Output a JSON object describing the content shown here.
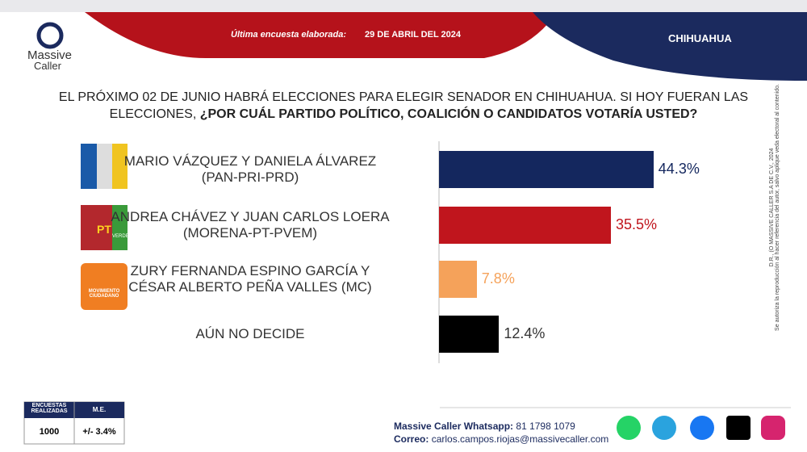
{
  "header": {
    "brand_top": "Massive",
    "brand_bottom": "Caller",
    "last_survey_label": "Última encuesta elaborada:",
    "last_survey_date": "29 DE ABRIL DEL 2024",
    "region": "CHIHUAHUA"
  },
  "chart_data": {
    "type": "bar",
    "orientation": "horizontal",
    "question": "EL PRÓXIMO 02 DE JUNIO HABRÁ ELECCIONES PARA ELEGIR SENADOR EN CHIHUAHUA. SI HOY FUERAN LAS ELECCIONES,",
    "question_bold": "¿POR CUÁL PARTIDO POLÍTICO, COALICIÓN O CANDIDATOS VOTARÍA USTED?",
    "categories": [
      "MARIO VÁZQUEZ Y DANIELA ÁLVAREZ\n(PAN-PRI-PRD)",
      "ANDREA CHÁVEZ Y JUAN CARLOS LOERA\n(MORENA-PT-PVEM)",
      "ZURY FERNANDA ESPINO GARCÍA Y\nCÉSAR ALBERTO PEÑA VALLES (MC)",
      "AÚN NO DECIDE"
    ],
    "values": [
      44.3,
      35.5,
      7.8,
      12.4
    ],
    "value_labels": [
      "44.3%",
      "35.5%",
      "7.8%",
      "12.4%"
    ],
    "colors": [
      "#14275e",
      "#c0151d",
      "#f5a25a",
      "#000000"
    ]
  },
  "logos": {
    "pt": "PT",
    "verde": "VERDE",
    "mc": "MOVIMIENTO CIUDADANO"
  },
  "footer": {
    "surveys_header": "ENCUESTAS REALIZADAS",
    "me_header": "M.E.",
    "surveys": "1000",
    "me": "+/- 3.4%",
    "whatsapp_label": "Massive Caller Whatsapp:",
    "whatsapp": "81 1798 1079",
    "email_label": "Correo:",
    "email": "carlos.campos.riojas@massivecaller.com"
  },
  "side": {
    "copyright": "D.R., (O MASSIVE CALLER S.A DE C.V., 2024",
    "notice": "Se autoriza la reproducción al hacer referencia del autor, salvo aplique veda electoral al contenido."
  }
}
